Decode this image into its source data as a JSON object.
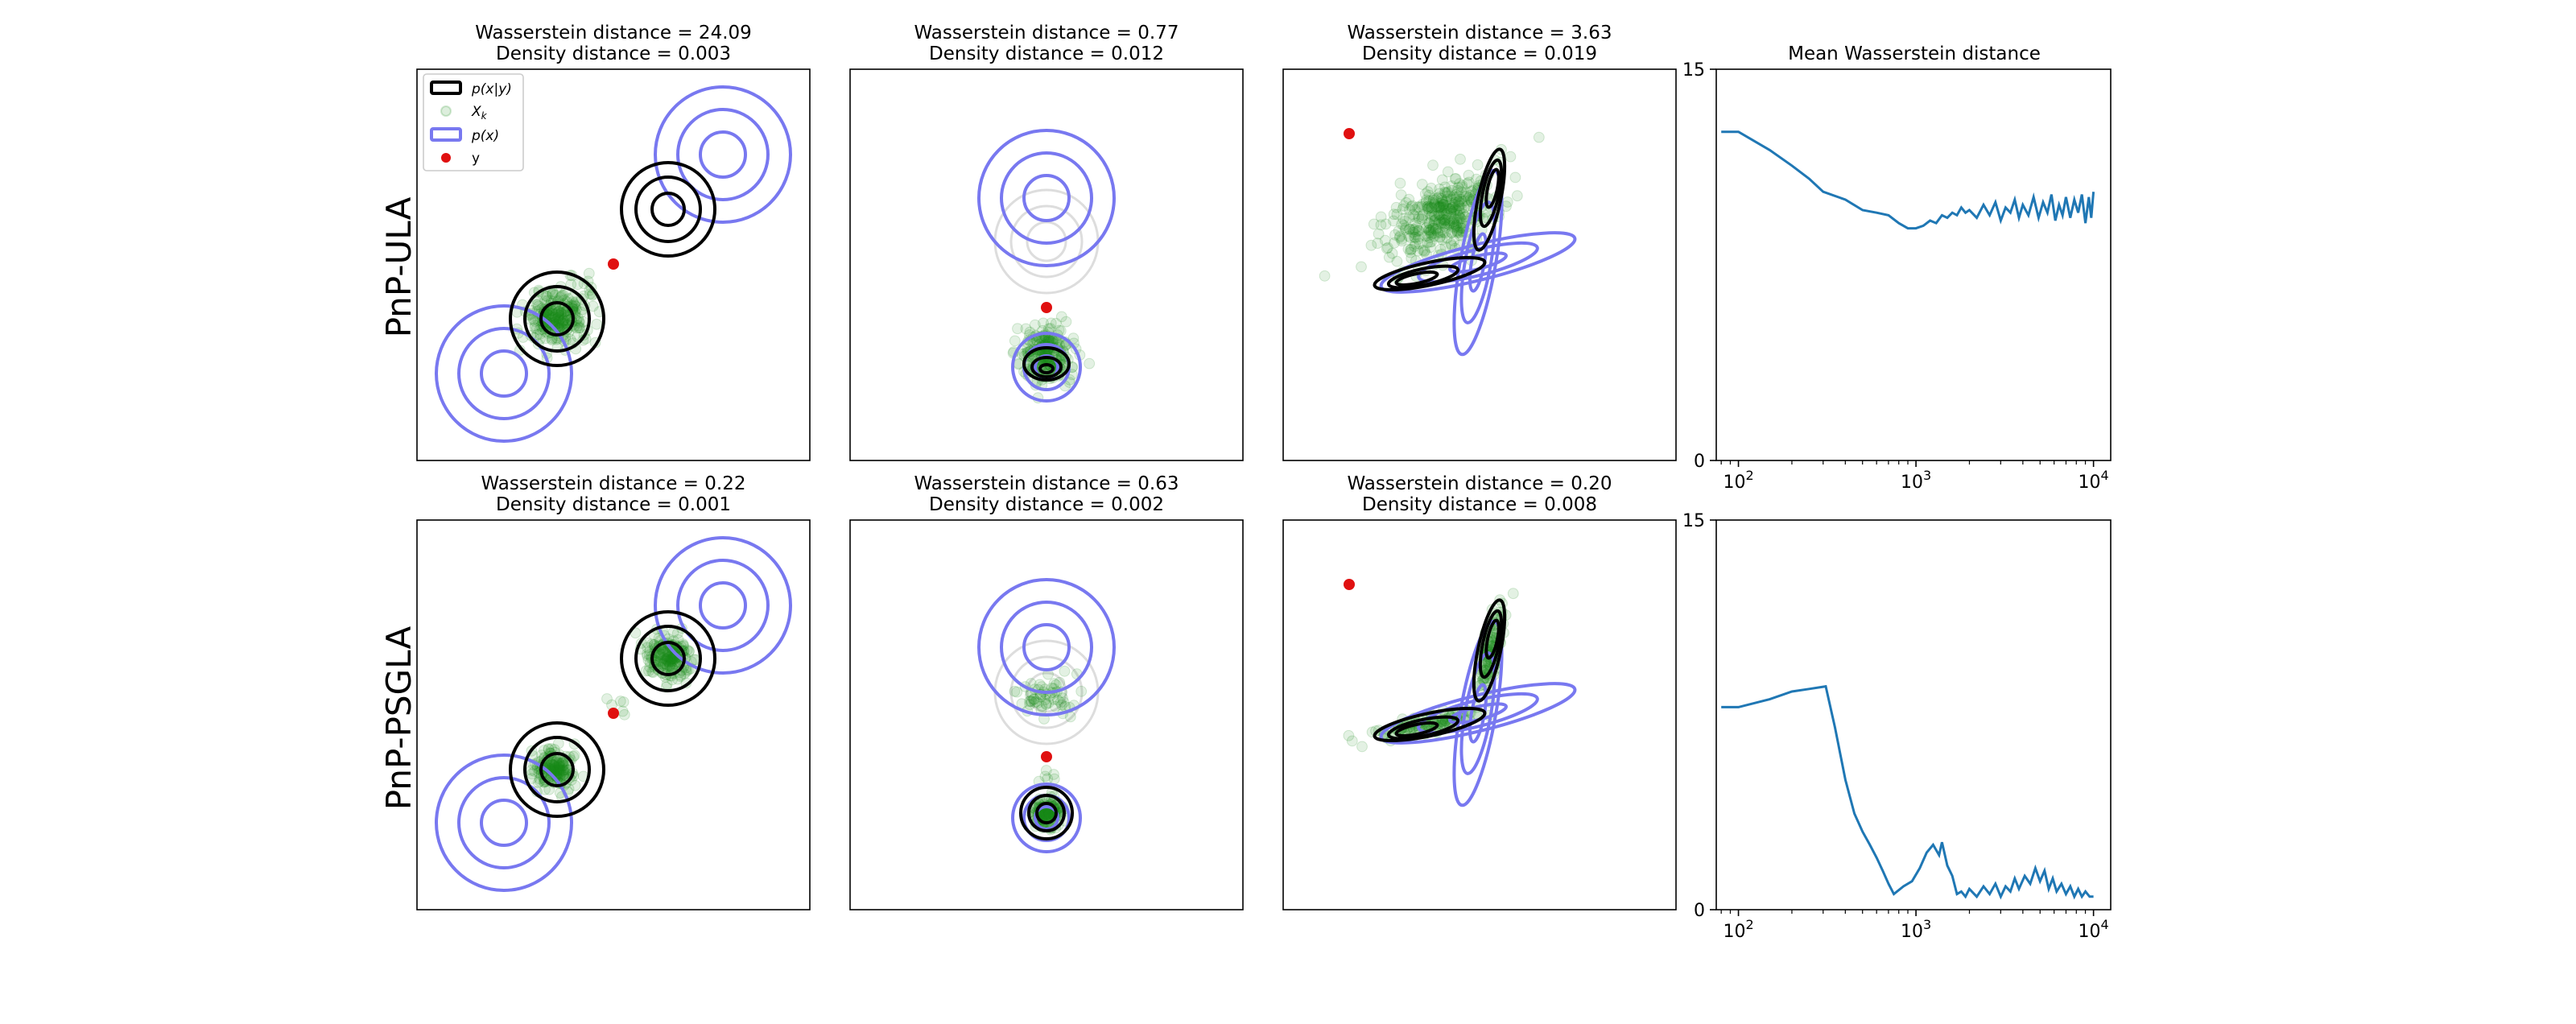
{
  "rows": [
    {
      "label": "PnP-ULA",
      "key": "ula"
    },
    {
      "label": "PnP-PSGLA",
      "key": "psgla"
    }
  ],
  "panels": {
    "ula": [
      {
        "line1": "Wasserstein distance = 24.09",
        "line2": "Density distance = 0.003"
      },
      {
        "line1": "Wasserstein distance = 0.77",
        "line2": "Density distance = 0.012"
      },
      {
        "line1": "Wasserstein distance = 3.63",
        "line2": "Density distance = 0.019"
      }
    ],
    "psgla": [
      {
        "line1": "Wasserstein distance = 0.22",
        "line2": "Density distance = 0.001"
      },
      {
        "line1": "Wasserstein distance = 0.63",
        "line2": "Density distance = 0.002"
      },
      {
        "line1": "Wasserstein distance = 0.20",
        "line2": "Density distance = 0.008"
      }
    ]
  },
  "legend": {
    "items": [
      {
        "key": "posterior",
        "label": "p(x|y)"
      },
      {
        "key": "samples",
        "label": "X_k"
      },
      {
        "key": "prior",
        "label": "p(x)"
      },
      {
        "key": "obs",
        "label": "y"
      }
    ]
  },
  "colors": {
    "prior": "#7878f0",
    "posterior": "#000000",
    "samples": "#1a8a1a",
    "obs": "#e01010",
    "line": "#1f77b4",
    "ghost": "#dddddd"
  },
  "chart_data": {
    "type": "line",
    "title": "Mean Wasserstein distance",
    "xscale": "log",
    "xlim": [
      75,
      12500
    ],
    "ylim": [
      0,
      15
    ],
    "x_ticks": [
      "10^2",
      "10^3",
      "10^4"
    ],
    "y_ticks": [
      "0",
      "15"
    ],
    "series": [
      {
        "row": "PnP-ULA",
        "points": [
          [
            80,
            12.6
          ],
          [
            100,
            12.6
          ],
          [
            150,
            11.9
          ],
          [
            200,
            11.3
          ],
          [
            250,
            10.8
          ],
          [
            300,
            10.3
          ],
          [
            400,
            10.0
          ],
          [
            500,
            9.6
          ],
          [
            600,
            9.5
          ],
          [
            700,
            9.4
          ],
          [
            800,
            9.1
          ],
          [
            900,
            8.9
          ],
          [
            1000,
            8.9
          ],
          [
            1100,
            9.0
          ],
          [
            1200,
            9.2
          ],
          [
            1300,
            9.1
          ],
          [
            1400,
            9.4
          ],
          [
            1500,
            9.3
          ],
          [
            1600,
            9.5
          ],
          [
            1700,
            9.4
          ],
          [
            1800,
            9.7
          ],
          [
            1900,
            9.5
          ],
          [
            2000,
            9.6
          ],
          [
            2200,
            9.3
          ],
          [
            2400,
            9.8
          ],
          [
            2600,
            9.4
          ],
          [
            2800,
            9.9
          ],
          [
            3000,
            9.2
          ],
          [
            3200,
            9.7
          ],
          [
            3400,
            9.5
          ],
          [
            3600,
            10.0
          ],
          [
            3800,
            9.3
          ],
          [
            4000,
            9.8
          ],
          [
            4300,
            9.4
          ],
          [
            4600,
            10.1
          ],
          [
            4900,
            9.3
          ],
          [
            5200,
            9.9
          ],
          [
            5500,
            9.5
          ],
          [
            5800,
            10.2
          ],
          [
            6100,
            9.2
          ],
          [
            6400,
            9.8
          ],
          [
            6700,
            9.4
          ],
          [
            7000,
            10.1
          ],
          [
            7400,
            9.3
          ],
          [
            7800,
            10.0
          ],
          [
            8200,
            9.5
          ],
          [
            8600,
            10.2
          ],
          [
            9000,
            9.1
          ],
          [
            9400,
            10.1
          ],
          [
            9700,
            9.3
          ],
          [
            10000,
            10.3
          ]
        ]
      },
      {
        "row": "PnP-PSGLA",
        "points": [
          [
            80,
            7.8
          ],
          [
            100,
            7.8
          ],
          [
            150,
            8.1
          ],
          [
            200,
            8.4
          ],
          [
            250,
            8.5
          ],
          [
            310,
            8.6
          ],
          [
            350,
            7.0
          ],
          [
            400,
            5.0
          ],
          [
            450,
            3.7
          ],
          [
            500,
            3.0
          ],
          [
            550,
            2.5
          ],
          [
            600,
            2.0
          ],
          [
            650,
            1.5
          ],
          [
            700,
            1.0
          ],
          [
            750,
            0.6
          ],
          [
            850,
            0.9
          ],
          [
            950,
            1.1
          ],
          [
            1050,
            1.6
          ],
          [
            1150,
            2.2
          ],
          [
            1250,
            2.5
          ],
          [
            1350,
            2.1
          ],
          [
            1400,
            2.6
          ],
          [
            1500,
            1.7
          ],
          [
            1600,
            1.3
          ],
          [
            1700,
            0.6
          ],
          [
            1800,
            0.7
          ],
          [
            1900,
            0.5
          ],
          [
            2000,
            0.8
          ],
          [
            2200,
            0.5
          ],
          [
            2400,
            0.9
          ],
          [
            2600,
            0.6
          ],
          [
            2800,
            1.0
          ],
          [
            3000,
            0.5
          ],
          [
            3200,
            0.9
          ],
          [
            3400,
            0.7
          ],
          [
            3600,
            1.2
          ],
          [
            3800,
            0.8
          ],
          [
            4100,
            1.3
          ],
          [
            4400,
            1.0
          ],
          [
            4700,
            1.6
          ],
          [
            5000,
            1.1
          ],
          [
            5300,
            1.5
          ],
          [
            5600,
            0.8
          ],
          [
            5900,
            1.2
          ],
          [
            6200,
            0.7
          ],
          [
            6600,
            1.0
          ],
          [
            7000,
            0.6
          ],
          [
            7400,
            0.9
          ],
          [
            7800,
            0.5
          ],
          [
            8200,
            0.8
          ],
          [
            8600,
            0.5
          ],
          [
            9000,
            0.7
          ],
          [
            9500,
            0.5
          ],
          [
            10000,
            0.5
          ]
        ]
      }
    ]
  }
}
